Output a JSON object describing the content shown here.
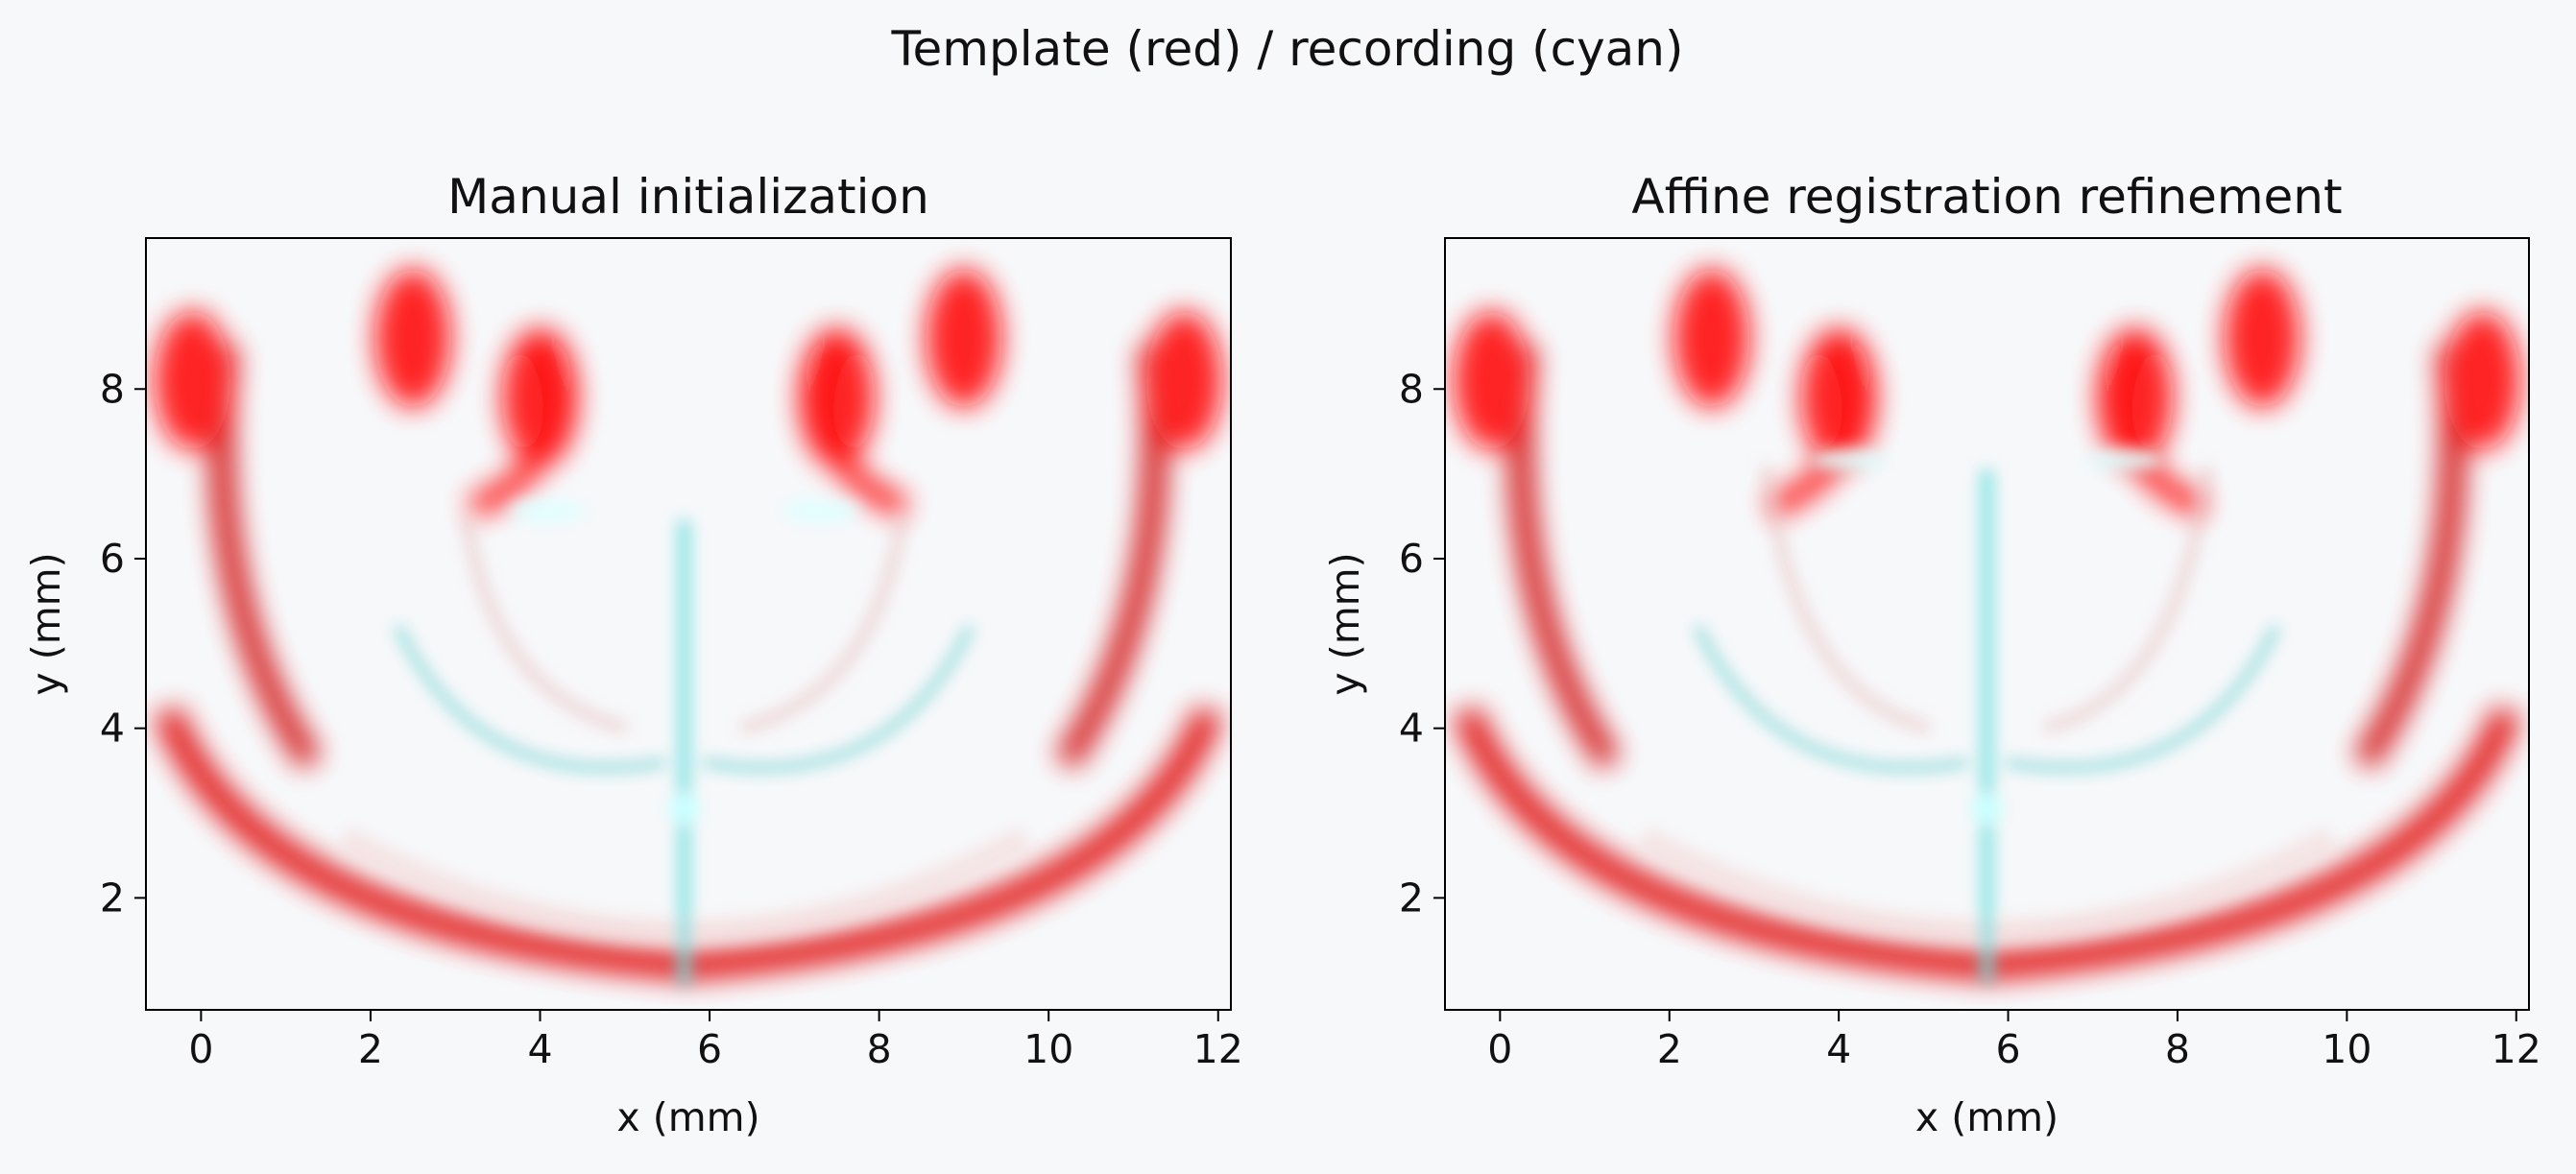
{
  "figure": {
    "suptitle": "Template (red) / recording (cyan)"
  },
  "colors": {
    "background": "#f7f8fa",
    "template": "#ff0000",
    "recording": "#00ffff"
  },
  "chart_data": [
    {
      "type": "heatmap",
      "title": "Manual initialization",
      "xlabel": "x (mm)",
      "ylabel": "y (mm)",
      "xlim": [
        -0.65,
        12.15
      ],
      "ylim": [
        9.78,
        0.68
      ],
      "xticks": [
        0,
        2,
        4,
        6,
        8,
        10,
        12
      ],
      "yticks": [
        2,
        4,
        6,
        8
      ],
      "layers": [
        {
          "name": "template",
          "extent_x": [
            -0.65,
            12.15
          ],
          "extent_y": [
            0.68,
            9.78
          ]
        },
        {
          "name": "recording",
          "extent_x": [
            1.68,
            9.72
          ],
          "extent_y": [
            0.68,
            6.45
          ]
        }
      ]
    },
    {
      "type": "heatmap",
      "title": "Affine registration refinement",
      "xlabel": "x (mm)",
      "ylabel": "y (mm)",
      "xlim": [
        -0.65,
        12.15
      ],
      "ylim": [
        9.78,
        0.68
      ],
      "xticks": [
        0,
        2,
        4,
        6,
        8,
        10,
        12
      ],
      "yticks": [
        2,
        4,
        6,
        8
      ],
      "layers": [
        {
          "name": "template",
          "extent_x": [
            -0.65,
            12.15
          ],
          "extent_y": [
            0.68,
            9.78
          ]
        },
        {
          "name": "recording",
          "extent_x": [
            1.68,
            9.82
          ],
          "extent_y": [
            0.68,
            7.05
          ]
        }
      ]
    }
  ]
}
